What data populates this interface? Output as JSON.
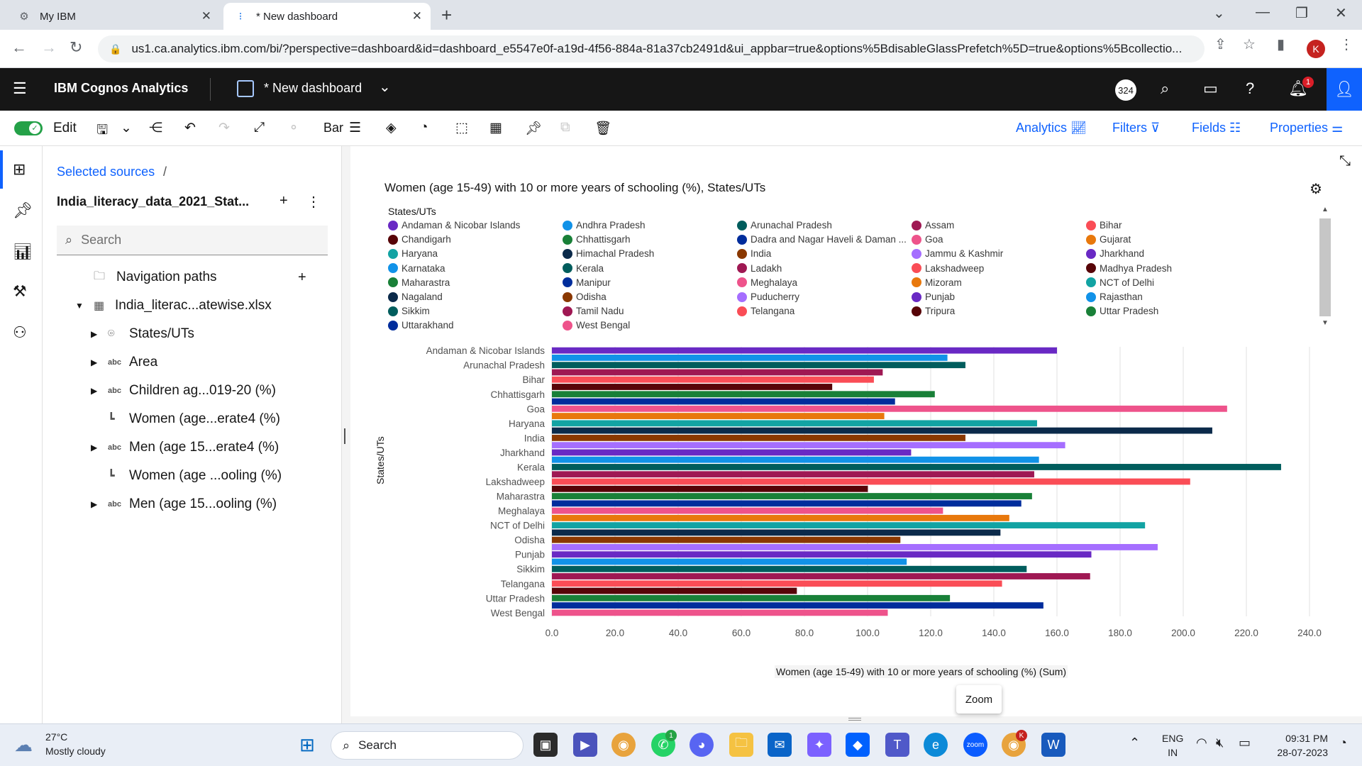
{
  "browser": {
    "tabs": [
      {
        "title": "My IBM",
        "active": false
      },
      {
        "title": "* New dashboard",
        "active": true
      }
    ],
    "url": "us1.ca.analytics.ibm.com/bi/?perspective=dashboard&id=dashboard_e5547e0f-a19d-4f56-884a-81a37cb2491d&ui_appbar=true&options%5BdisableGlassPrefetch%5D=true&options%5Bcollectio...",
    "profile_initial": "K"
  },
  "appbar": {
    "brand": "IBM Cognos Analytics",
    "dashboard_name": "* New dashboard",
    "counter": "324",
    "notification_count": "1"
  },
  "toolbar": {
    "edit_label": "Edit",
    "viz_type_label": "Bar",
    "analytics_label": "Analytics",
    "filters_label": "Filters",
    "fields_label": "Fields",
    "properties_label": "Properties"
  },
  "sources": {
    "breadcrumb": "Selected sources",
    "breadcrumb_sep": "/",
    "source_title": "India_literacy_data_2021_Stat...",
    "search_placeholder": "Search",
    "tree": [
      {
        "label": "Navigation paths",
        "icon": "folder-icon",
        "expandable": false
      },
      {
        "label": "India_literac...atewise.xlsx",
        "icon": "table-icon",
        "expandable": true
      },
      {
        "label": "States/UTs",
        "icon": "location-icon",
        "expandable": true
      },
      {
        "label": "Area",
        "icon": "abc",
        "expandable": true
      },
      {
        "label": "Children ag...019-20 (%)",
        "icon": "abc",
        "expandable": true
      },
      {
        "label": "Women (age...erate4 (%)",
        "icon": "measure-icon",
        "expandable": false
      },
      {
        "label": "Men (age 15...erate4 (%)",
        "icon": "abc",
        "expandable": true
      },
      {
        "label": "Women (age ...ooling (%)",
        "icon": "measure-icon",
        "expandable": false
      },
      {
        "label": "Men (age 15...ooling (%)",
        "icon": "abc",
        "expandable": true
      }
    ]
  },
  "widget": {
    "title": "Women (age 15-49) with 10 or more years of schooling (%), States/UTs",
    "zoom_label": "Zoom"
  },
  "chart_data": {
    "type": "bar",
    "orientation": "horizontal",
    "title": "Women (age 15-49) with 10 or more years of schooling (%), States/UTs",
    "xlabel": "Women (age 15-49) with 10 or more years of schooling (%) (Sum)",
    "ylabel": "States/UTs",
    "xlim": [
      0,
      240
    ],
    "xticks": [
      "0.0",
      "20.0",
      "40.0",
      "60.0",
      "80.0",
      "100.0",
      "120.0",
      "140.0",
      "160.0",
      "180.0",
      "200.0",
      "220.0",
      "240.0"
    ],
    "grid": true,
    "legend_title": "States/UTs",
    "legend_placement": "top",
    "legend": [
      {
        "name": "Andaman & Nicobar Islands",
        "color": "#6929c4"
      },
      {
        "name": "Andhra Pradesh",
        "color": "#1192e8"
      },
      {
        "name": "Arunachal Pradesh",
        "color": "#005d5d"
      },
      {
        "name": "Assam",
        "color": "#9f1853"
      },
      {
        "name": "Bihar",
        "color": "#fa4d56"
      },
      {
        "name": "Chandigarh",
        "color": "#570408"
      },
      {
        "name": "Chhattisgarh",
        "color": "#198038"
      },
      {
        "name": "Dadra and Nagar Haveli & Daman ...",
        "color": "#002d9c"
      },
      {
        "name": "Goa",
        "color": "#ee538b"
      },
      {
        "name": "Gujarat",
        "color": "#e8780c"
      },
      {
        "name": "Haryana",
        "color": "#12a3a3"
      },
      {
        "name": "Himachal Pradesh",
        "color": "#0b2a4a"
      },
      {
        "name": "India",
        "color": "#8a3800"
      },
      {
        "name": "Jammu & Kashmir",
        "color": "#a56eff"
      },
      {
        "name": "Jharkhand",
        "color": "#6929c4"
      },
      {
        "name": "Karnataka",
        "color": "#1192e8"
      },
      {
        "name": "Kerala",
        "color": "#005d5d"
      },
      {
        "name": "Ladakh",
        "color": "#9f1853"
      },
      {
        "name": "Lakshadweep",
        "color": "#fa4d56"
      },
      {
        "name": "Madhya Pradesh",
        "color": "#570408"
      },
      {
        "name": "Maharastra",
        "color": "#198038"
      },
      {
        "name": "Manipur",
        "color": "#002d9c"
      },
      {
        "name": "Meghalaya",
        "color": "#ee538b"
      },
      {
        "name": "Mizoram",
        "color": "#e8780c"
      },
      {
        "name": "NCT of Delhi",
        "color": "#12a3a3"
      },
      {
        "name": "Nagaland",
        "color": "#0b2a4a"
      },
      {
        "name": "Odisha",
        "color": "#8a3800"
      },
      {
        "name": "Puducherry",
        "color": "#a56eff"
      },
      {
        "name": "Punjab",
        "color": "#6929c4"
      },
      {
        "name": "Rajasthan",
        "color": "#1192e8"
      },
      {
        "name": "Sikkim",
        "color": "#005d5d"
      },
      {
        "name": "Tamil Nadu",
        "color": "#9f1853"
      },
      {
        "name": "Telangana",
        "color": "#fa4d56"
      },
      {
        "name": "Tripura",
        "color": "#570408"
      },
      {
        "name": "Uttar Pradesh",
        "color": "#198038"
      },
      {
        "name": "Uttarakhand",
        "color": "#002d9c"
      },
      {
        "name": "West Bengal",
        "color": "#ee538b"
      }
    ],
    "category_labels": [
      "Andaman & Nicobar Islands",
      "Arunachal Pradesh",
      "Bihar",
      "Chhattisgarh",
      "Goa",
      "Haryana",
      "India",
      "Jharkhand",
      "Kerala",
      "Lakshadweep",
      "Maharastra",
      "Meghalaya",
      "NCT of Delhi",
      "Odisha",
      "Punjab",
      "Sikkim",
      "Telangana",
      "Uttar Pradesh",
      "West Bengal"
    ],
    "bars": [
      {
        "category": "Andaman & Nicobar Islands",
        "value": 160.0
      },
      {
        "category": "Andhra Pradesh",
        "value": 125.3
      },
      {
        "category": "Arunachal Pradesh",
        "value": 131.0
      },
      {
        "category": "Assam",
        "value": 104.8
      },
      {
        "category": "Bihar",
        "value": 102.0
      },
      {
        "category": "Chandigarh",
        "value": 88.8
      },
      {
        "category": "Chhattisgarh",
        "value": 121.3
      },
      {
        "category": "Dadra and Nagar Haveli & Daman ...",
        "value": 108.7
      },
      {
        "category": "Goa",
        "value": 213.9
      },
      {
        "category": "Gujarat",
        "value": 105.3
      },
      {
        "category": "Haryana",
        "value": 153.7
      },
      {
        "category": "Himachal Pradesh",
        "value": 209.2
      },
      {
        "category": "India",
        "value": 131.0
      },
      {
        "category": "Jammu & Kashmir",
        "value": 162.6
      },
      {
        "category": "Jharkhand",
        "value": 113.8
      },
      {
        "category": "Karnataka",
        "value": 154.3
      },
      {
        "category": "Kerala",
        "value": 231.0
      },
      {
        "category": "Ladakh",
        "value": 152.8
      },
      {
        "category": "Lakshadweep",
        "value": 202.2
      },
      {
        "category": "Madhya Pradesh",
        "value": 100.1
      },
      {
        "category": "Maharastra",
        "value": 152.1
      },
      {
        "category": "Manipur",
        "value": 148.7
      },
      {
        "category": "Meghalaya",
        "value": 123.9
      },
      {
        "category": "Mizoram",
        "value": 144.9
      },
      {
        "category": "NCT of Delhi",
        "value": 187.9
      },
      {
        "category": "Nagaland",
        "value": 142.1
      },
      {
        "category": "Odisha",
        "value": 110.4
      },
      {
        "category": "Puducherry",
        "value": 191.9
      },
      {
        "category": "Punjab",
        "value": 170.9
      },
      {
        "category": "Rajasthan",
        "value": 112.4
      },
      {
        "category": "Sikkim",
        "value": 150.4
      },
      {
        "category": "Tamil Nadu",
        "value": 170.5
      },
      {
        "category": "Telangana",
        "value": 142.6
      },
      {
        "category": "Tripura",
        "value": 77.6
      },
      {
        "category": "Uttar Pradesh",
        "value": 126.1
      },
      {
        "category": "Uttarakhand",
        "value": 155.7
      },
      {
        "category": "West Bengal",
        "value": 106.4
      }
    ]
  },
  "taskbar": {
    "temperature": "27°C",
    "weather": "Mostly cloudy",
    "search_label": "Search",
    "lang_line1": "ENG",
    "lang_line2": "IN",
    "time": "09:31 PM",
    "date": "28-07-2023",
    "whatsapp_badge": "1",
    "chrome_badge": "K"
  }
}
